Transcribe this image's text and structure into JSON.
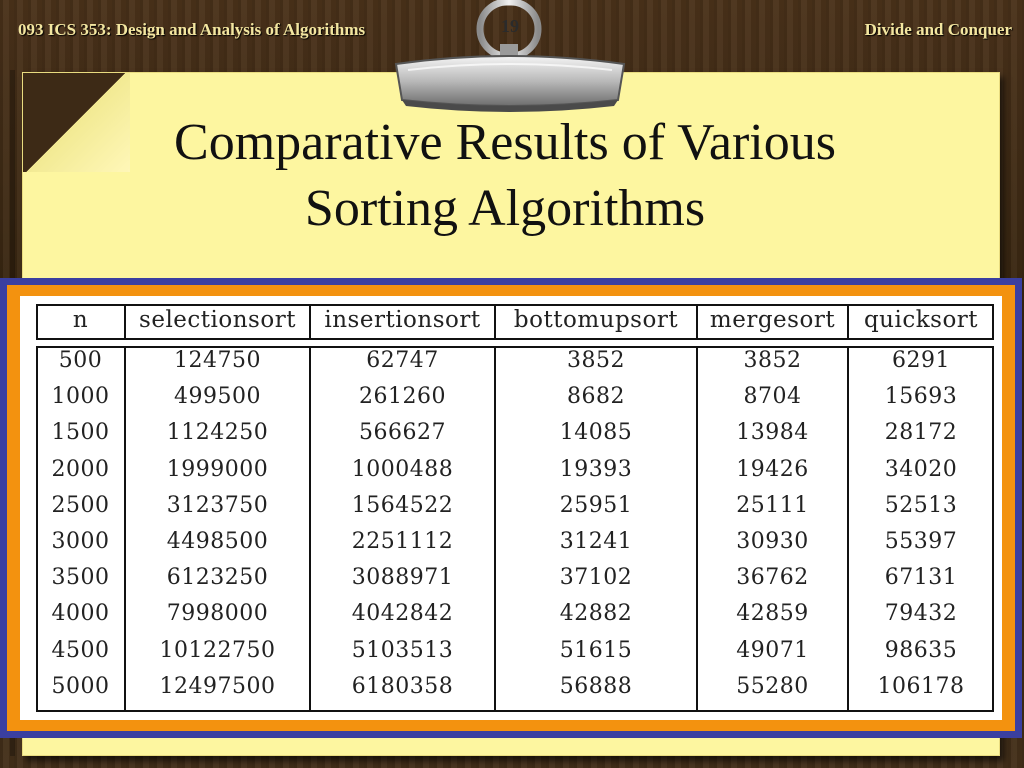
{
  "header": {
    "course": "093 ICS 353: Design and Analysis of Algorithms",
    "page_number": "19",
    "topic": "Divide and Conquer"
  },
  "slide": {
    "title_line1": "Comparative Results of Various",
    "title_line2": "Sorting Algorithms"
  },
  "table": {
    "columns": [
      "n",
      "selectionsort",
      "insertionsort",
      "bottomupsort",
      "mergesort",
      "quicksort"
    ],
    "rows": [
      [
        "500",
        "124750",
        "62747",
        "3852",
        "3852",
        "6291"
      ],
      [
        "1000",
        "499500",
        "261260",
        "8682",
        "8704",
        "15693"
      ],
      [
        "1500",
        "1124250",
        "566627",
        "14085",
        "13984",
        "28172"
      ],
      [
        "2000",
        "1999000",
        "1000488",
        "19393",
        "19426",
        "34020"
      ],
      [
        "2500",
        "3123750",
        "1564522",
        "25951",
        "25111",
        "52513"
      ],
      [
        "3000",
        "4498500",
        "2251112",
        "31241",
        "30930",
        "55397"
      ],
      [
        "3500",
        "6123250",
        "3088971",
        "37102",
        "36762",
        "67131"
      ],
      [
        "4000",
        "7998000",
        "4042842",
        "42882",
        "42859",
        "79432"
      ],
      [
        "4500",
        "10122750",
        "5103513",
        "51615",
        "49071",
        "98635"
      ],
      [
        "5000",
        "12497500",
        "6180358",
        "56888",
        "55280",
        "106178"
      ]
    ]
  },
  "colors": {
    "note": "#fdf6a0",
    "frame_blue": "#3a3fa0",
    "frame_orange": "#f3920f",
    "header_text": "#f3e6a0"
  }
}
